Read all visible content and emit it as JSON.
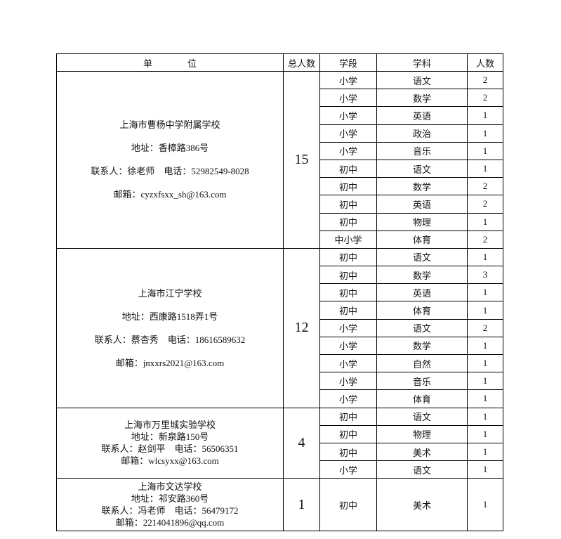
{
  "header": [
    "单位",
    "总人数",
    "学段",
    "学科",
    "人数"
  ],
  "schools": [
    {
      "name": "上海市曹杨中学附属学校",
      "address": "地址：香樟路386号",
      "contact": "联系人：徐老师　电话：52982549-8028",
      "email": "邮箱：cyzxfsxx_sh@163.com",
      "total": 15,
      "rows": [
        [
          "小学",
          "语文",
          2
        ],
        [
          "小学",
          "数学",
          2
        ],
        [
          "小学",
          "英语",
          1
        ],
        [
          "小学",
          "政治",
          1
        ],
        [
          "小学",
          "音乐",
          1
        ],
        [
          "初中",
          "语文",
          1
        ],
        [
          "初中",
          "数学",
          2
        ],
        [
          "初中",
          "英语",
          2
        ],
        [
          "初中",
          "物理",
          1
        ],
        [
          "中小学",
          "体育",
          2
        ]
      ]
    },
    {
      "name": "上海市江宁学校",
      "address": "地址：西康路1518弄1号",
      "contact": "联系人：蔡杏秀　电话：18616589632",
      "email": "邮箱：jnxxrs2021@163.com",
      "total": 12,
      "rows": [
        [
          "初中",
          "语文",
          1
        ],
        [
          "初中",
          "数学",
          3
        ],
        [
          "初中",
          "英语",
          1
        ],
        [
          "初中",
          "体育",
          1
        ],
        [
          "小学",
          "语文",
          2
        ],
        [
          "小学",
          "数学",
          1
        ],
        [
          "小学",
          "自然",
          1
        ],
        [
          "小学",
          "音乐",
          1
        ],
        [
          "小学",
          "体育",
          1
        ]
      ]
    },
    {
      "name": "上海市万里城实验学校",
      "address": "地址：新泉路150号",
      "contact": "联系人：赵剑平　电话：56506351",
      "email": "邮箱：wlcsyxx@163.com",
      "total": 4,
      "rows": [
        [
          "初中",
          "语文",
          1
        ],
        [
          "初中",
          "物理",
          1
        ],
        [
          "初中",
          "美术",
          1
        ],
        [
          "小学",
          "语文",
          1
        ]
      ]
    },
    {
      "name": "上海市文达学校",
      "address": "地址：祁安路360号",
      "contact": "联系人：冯老师　电话：56479172",
      "email": "邮箱：2214041896@qq.com",
      "total": 1,
      "rows": [
        [
          "初中",
          "美术",
          1
        ]
      ]
    }
  ]
}
